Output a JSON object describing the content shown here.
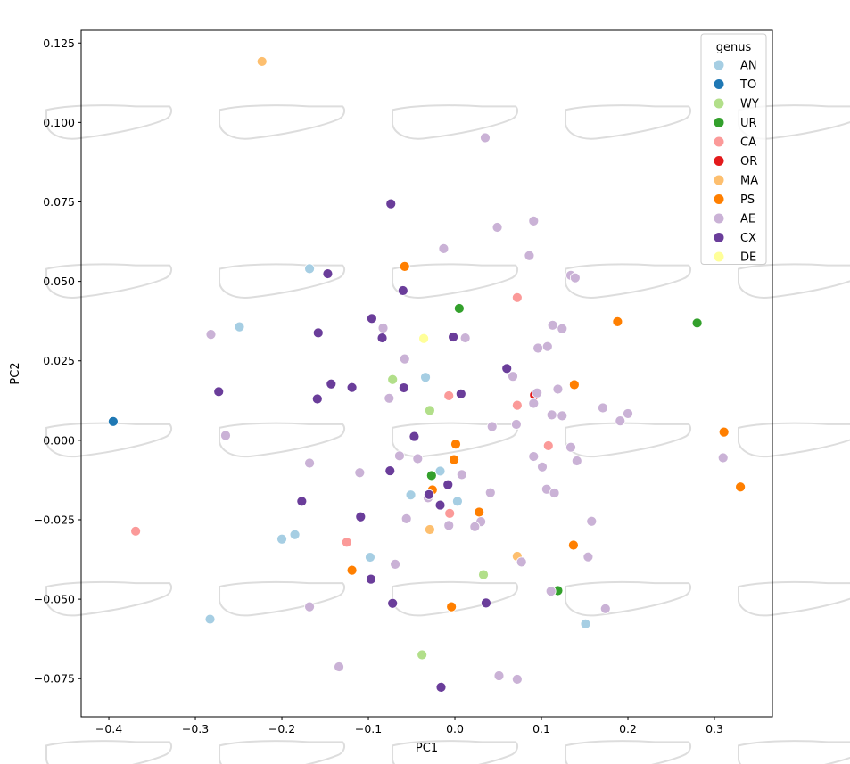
{
  "chart_data": {
    "type": "scatter",
    "title": "",
    "xlabel": "PC1",
    "ylabel": "PC2",
    "xlim": [
      -0.432,
      0.367
    ],
    "ylim": [
      -0.087,
      0.129
    ],
    "grid": false,
    "xticks": [
      -0.4,
      -0.3,
      -0.2,
      -0.1,
      0.0,
      0.1,
      0.2,
      0.3
    ],
    "xtick_labels": [
      "−0.4",
      "−0.3",
      "−0.2",
      "−0.1",
      "0.0",
      "0.1",
      "0.2",
      "0.3"
    ],
    "yticks": [
      -0.075,
      -0.05,
      -0.025,
      0.0,
      0.025,
      0.05,
      0.075,
      0.1,
      0.125
    ],
    "ytick_labels": [
      "−0.075",
      "−0.050",
      "−0.025",
      "0.000",
      "0.025",
      "0.050",
      "0.075",
      "0.100",
      "0.125"
    ],
    "background_shapes": {
      "description": "faint grey outline shapes tiled across the plot",
      "color": "#dddddd",
      "columns_pc1": [
        -0.4,
        -0.2,
        0.0,
        0.2,
        0.4
      ],
      "rows_pc2": [
        -0.1,
        -0.05,
        0.0,
        0.05,
        0.1
      ]
    },
    "legend": {
      "title": "genus",
      "position": "top-right",
      "entries": [
        "AN",
        "TO",
        "WY",
        "UR",
        "CA",
        "OR",
        "MA",
        "PS",
        "AE",
        "CX",
        "DE"
      ]
    },
    "series": [
      {
        "name": "AN",
        "color": "#a6cee3",
        "points": [
          [
            -0.168,
            0.054
          ],
          [
            -0.249,
            0.0357
          ],
          [
            -0.034,
            0.0198
          ],
          [
            -0.051,
            -0.0172
          ],
          [
            -0.017,
            -0.0097
          ],
          [
            0.003,
            -0.0192
          ],
          [
            -0.2,
            -0.0311
          ],
          [
            -0.185,
            -0.0297
          ],
          [
            -0.098,
            -0.0368
          ],
          [
            -0.283,
            -0.0563
          ],
          [
            0.151,
            -0.0578
          ]
        ]
      },
      {
        "name": "TO",
        "color": "#1f78b4",
        "points": [
          [
            -0.395,
            0.0059
          ]
        ]
      },
      {
        "name": "WY",
        "color": "#b2df8a",
        "points": [
          [
            -0.072,
            0.0191
          ],
          [
            -0.029,
            0.0094
          ],
          [
            0.033,
            -0.0423
          ],
          [
            -0.038,
            -0.0675
          ]
        ]
      },
      {
        "name": "UR",
        "color": "#33a02c",
        "points": [
          [
            0.005,
            0.0415
          ],
          [
            0.28,
            0.0369
          ],
          [
            -0.027,
            -0.0111
          ],
          [
            0.119,
            -0.0473
          ]
        ]
      },
      {
        "name": "CA",
        "color": "#fb9a99",
        "points": [
          [
            0.072,
            0.0449
          ],
          [
            -0.007,
            0.014
          ],
          [
            0.072,
            0.011
          ],
          [
            0.108,
            -0.0017
          ],
          [
            -0.369,
            -0.0286
          ],
          [
            -0.006,
            -0.023
          ],
          [
            -0.125,
            -0.0321
          ]
        ]
      },
      {
        "name": "OR",
        "color": "#e31a1c",
        "points": [
          [
            0.092,
            0.0142
          ]
        ]
      },
      {
        "name": "MA",
        "color": "#fdbf6f",
        "points": [
          [
            -0.223,
            0.1192
          ],
          [
            -0.029,
            -0.0281
          ],
          [
            0.072,
            -0.0365
          ]
        ]
      },
      {
        "name": "PS",
        "color": "#ff7f00",
        "points": [
          [
            -0.058,
            0.0547
          ],
          [
            0.188,
            0.0373
          ],
          [
            0.138,
            0.0175
          ],
          [
            0.001,
            -0.0012
          ],
          [
            -0.001,
            -0.0061
          ],
          [
            0.311,
            0.0026
          ],
          [
            0.33,
            -0.0147
          ],
          [
            -0.026,
            -0.0156
          ],
          [
            0.028,
            -0.0226
          ],
          [
            0.137,
            -0.033
          ],
          [
            -0.119,
            -0.0409
          ],
          [
            -0.004,
            -0.0524
          ]
        ]
      },
      {
        "name": "AE",
        "color": "#cab2d6",
        "points": [
          [
            0.035,
            0.0952
          ],
          [
            0.049,
            0.067
          ],
          [
            0.091,
            0.069
          ],
          [
            -0.013,
            0.0603
          ],
          [
            0.086,
            0.0581
          ],
          [
            0.134,
            0.0519
          ],
          [
            0.139,
            0.0511
          ],
          [
            -0.282,
            0.0333
          ],
          [
            -0.083,
            0.0353
          ],
          [
            0.012,
            0.0322
          ],
          [
            0.113,
            0.0362
          ],
          [
            0.124,
            0.0351
          ],
          [
            0.096,
            0.029
          ],
          [
            0.107,
            0.0295
          ],
          [
            -0.058,
            0.0256
          ],
          [
            0.067,
            0.0201
          ],
          [
            0.095,
            0.0149
          ],
          [
            0.119,
            0.0161
          ],
          [
            -0.076,
            0.0132
          ],
          [
            0.091,
            0.0116
          ],
          [
            0.171,
            0.0102
          ],
          [
            0.2,
            0.0084
          ],
          [
            0.112,
            0.008
          ],
          [
            0.124,
            0.0077
          ],
          [
            0.191,
            0.0061
          ],
          [
            0.071,
            0.005
          ],
          [
            0.043,
            0.0043
          ],
          [
            -0.265,
            0.0015
          ],
          [
            0.134,
            -0.0022
          ],
          [
            -0.064,
            -0.0049
          ],
          [
            -0.043,
            -0.0058
          ],
          [
            0.091,
            -0.0051
          ],
          [
            0.141,
            -0.0065
          ],
          [
            -0.168,
            -0.0072
          ],
          [
            0.101,
            -0.0084
          ],
          [
            -0.11,
            -0.0102
          ],
          [
            0.008,
            -0.0108
          ],
          [
            0.31,
            -0.0055
          ],
          [
            0.106,
            -0.0154
          ],
          [
            0.115,
            -0.0166
          ],
          [
            0.041,
            -0.0165
          ],
          [
            -0.031,
            -0.0181
          ],
          [
            -0.056,
            -0.0247
          ],
          [
            0.158,
            -0.0255
          ],
          [
            0.03,
            -0.0256
          ],
          [
            -0.007,
            -0.0268
          ],
          [
            0.023,
            -0.0272
          ],
          [
            0.154,
            -0.0367
          ],
          [
            -0.069,
            -0.039
          ],
          [
            0.077,
            -0.0383
          ],
          [
            0.111,
            -0.0475
          ],
          [
            -0.168,
            -0.0524
          ],
          [
            0.174,
            -0.053
          ],
          [
            -0.134,
            -0.0713
          ],
          [
            0.051,
            -0.0741
          ],
          [
            0.072,
            -0.0752
          ]
        ]
      },
      {
        "name": "CX",
        "color": "#6a3d9a",
        "points": [
          [
            -0.074,
            0.0744
          ],
          [
            -0.147,
            0.0524
          ],
          [
            -0.06,
            0.0471
          ],
          [
            -0.096,
            0.0383
          ],
          [
            -0.158,
            0.0338
          ],
          [
            -0.084,
            0.0322
          ],
          [
            -0.002,
            0.0325
          ],
          [
            0.06,
            0.0226
          ],
          [
            -0.143,
            0.0177
          ],
          [
            -0.119,
            0.0166
          ],
          [
            -0.059,
            0.0165
          ],
          [
            0.007,
            0.0146
          ],
          [
            -0.273,
            0.0153
          ],
          [
            -0.159,
            0.013
          ],
          [
            -0.047,
            0.0012
          ],
          [
            -0.075,
            -0.0096
          ],
          [
            -0.008,
            -0.014
          ],
          [
            -0.03,
            -0.0171
          ],
          [
            -0.017,
            -0.0204
          ],
          [
            -0.177,
            -0.0192
          ],
          [
            -0.109,
            -0.0241
          ],
          [
            -0.097,
            -0.0437
          ],
          [
            -0.072,
            -0.0513
          ],
          [
            0.036,
            -0.0512
          ],
          [
            -0.016,
            -0.0777
          ]
        ]
      },
      {
        "name": "DE",
        "color": "#ffff99",
        "points": [
          [
            -0.036,
            0.032
          ]
        ]
      }
    ]
  }
}
